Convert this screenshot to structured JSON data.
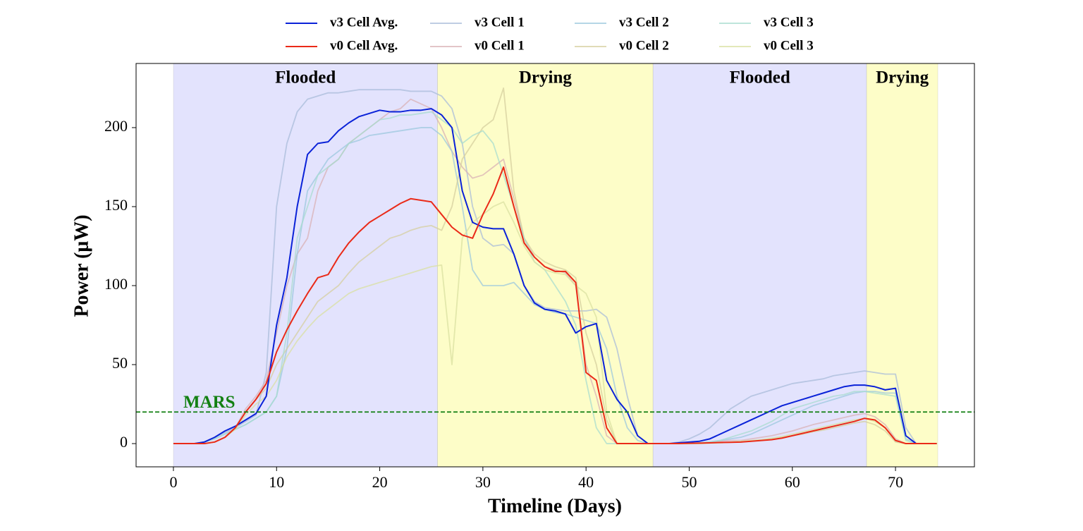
{
  "chart_data": {
    "type": "line",
    "xlabel": "Timeline (Days)",
    "ylabel": "Power (μW)",
    "xlim": [
      -3.62,
      77.65
    ],
    "ylim": [
      -14.7,
      240.6
    ],
    "xticks": [
      0,
      10,
      20,
      30,
      40,
      50,
      60,
      70
    ],
    "yticks": [
      0,
      50,
      100,
      150,
      200
    ],
    "regions": [
      {
        "label": "Flooded",
        "start": 0,
        "end": 25.6,
        "color": "#e3e3fd"
      },
      {
        "label": "Drying",
        "start": 25.6,
        "end": 46.5,
        "color": "#fdfdc8"
      },
      {
        "label": "Flooded",
        "start": 46.5,
        "end": 67.2,
        "color": "#e3e3fd"
      },
      {
        "label": "Drying",
        "start": 67.2,
        "end": 74.1,
        "color": "#fdfdc8"
      }
    ],
    "hline": {
      "label": "MARS",
      "value": 20,
      "color": "#138013"
    },
    "x": [
      0,
      1,
      2,
      3,
      4,
      5,
      6,
      7,
      8,
      9,
      10,
      11,
      12,
      13,
      14,
      15,
      16,
      17,
      18,
      19,
      20,
      21,
      22,
      23,
      24,
      25,
      26,
      27,
      28,
      29,
      30,
      31,
      32,
      33,
      34,
      35,
      36,
      37,
      38,
      39,
      40,
      41,
      42,
      43,
      44,
      45,
      46,
      47,
      48,
      49,
      50,
      51,
      52,
      53,
      54,
      55,
      56,
      57,
      58,
      59,
      60,
      61,
      62,
      63,
      64,
      65,
      66,
      67,
      68,
      69,
      70,
      71,
      72,
      73,
      74
    ],
    "series": [
      {
        "name": "v3 Cell Avg.",
        "color": "#0a22d8",
        "values": [
          0,
          0,
          0,
          1,
          4,
          8,
          11,
          15,
          19,
          30,
          75,
          105,
          150,
          183,
          190,
          191,
          198,
          203,
          207,
          209,
          211,
          210,
          210,
          211,
          211,
          212,
          208,
          200,
          160,
          140,
          137,
          136,
          136,
          120,
          100,
          89,
          85,
          84,
          82,
          70,
          74,
          76,
          40,
          28,
          20,
          5,
          0,
          0,
          0,
          0.5,
          1,
          1.5,
          3,
          6,
          9,
          12,
          15,
          18,
          21,
          24,
          26,
          28,
          30,
          32,
          34,
          36,
          37,
          37,
          36,
          34,
          35,
          5,
          0,
          0,
          0
        ]
      },
      {
        "name": "v0 Cell Avg.",
        "color": "#ea2a18",
        "values": [
          0,
          0,
          0,
          0,
          1,
          4,
          10,
          20,
          28,
          38,
          58,
          72,
          84,
          95,
          105,
          107,
          118,
          127,
          134,
          140,
          144,
          148,
          152,
          155,
          154,
          153,
          145,
          137,
          132,
          130,
          145,
          158,
          175,
          150,
          127,
          118,
          112,
          109,
          109,
          102,
          45,
          40,
          10,
          0,
          0,
          0,
          0,
          0,
          0,
          0,
          0.2,
          0.3,
          0.5,
          0.7,
          0.8,
          1,
          1.5,
          2,
          2.5,
          3.5,
          5,
          6.5,
          8,
          9.5,
          11,
          12.5,
          14,
          16,
          15,
          10,
          2,
          0,
          0,
          0,
          0
        ]
      },
      {
        "name": "v3 Cell 1",
        "color": "#a9bcd9",
        "values": [
          0,
          0,
          0,
          1,
          4,
          7,
          10,
          14,
          18,
          45,
          150,
          190,
          210,
          218,
          220,
          222,
          222,
          223,
          224,
          224,
          224,
          224,
          224,
          223,
          223,
          223,
          220,
          212,
          190,
          150,
          130,
          125,
          126,
          120,
          100,
          90,
          86,
          85,
          84,
          84,
          84,
          85,
          80,
          60,
          30,
          5,
          0,
          0,
          0,
          1,
          3,
          6,
          10,
          16,
          22,
          26,
          30,
          32,
          34,
          36,
          38,
          39,
          40,
          41,
          43,
          44,
          45,
          46,
          45,
          44,
          44,
          10,
          0,
          0,
          0
        ]
      },
      {
        "name": "v0 Cell 1",
        "color": "#d9b2b5",
        "values": [
          0,
          0,
          0,
          0,
          1,
          4,
          10,
          22,
          30,
          40,
          70,
          100,
          120,
          130,
          160,
          175,
          180,
          190,
          195,
          200,
          205,
          210,
          212,
          218,
          215,
          212,
          200,
          185,
          175,
          168,
          170,
          175,
          180,
          155,
          130,
          118,
          112,
          110,
          108,
          100,
          50,
          30,
          5,
          0,
          0,
          0,
          0,
          0,
          0,
          0,
          0,
          0.5,
          1,
          1.5,
          2,
          2,
          3,
          4,
          5,
          6.5,
          8,
          10,
          12,
          13.5,
          15,
          16.5,
          18,
          19,
          17,
          12,
          3,
          0,
          0,
          0,
          0
        ]
      },
      {
        "name": "v3 Cell 2",
        "color": "#9cc8dd",
        "values": [
          0,
          0,
          0,
          1,
          3,
          6,
          9,
          12,
          16,
          20,
          30,
          60,
          120,
          160,
          170,
          180,
          185,
          190,
          192,
          195,
          196,
          197,
          198,
          199,
          200,
          200,
          195,
          185,
          150,
          110,
          100,
          100,
          100,
          102,
          95,
          88,
          85,
          83,
          82,
          80,
          78,
          76,
          60,
          30,
          10,
          2,
          0,
          0,
          0,
          0,
          0,
          0.5,
          1,
          2,
          3,
          4,
          6,
          9,
          12,
          15,
          18,
          21,
          24,
          26,
          28,
          30,
          32,
          33,
          33,
          32,
          32,
          3,
          0,
          0,
          0
        ]
      },
      {
        "name": "v0 Cell 2",
        "color": "#d6cf9f",
        "values": [
          0,
          0,
          0,
          0,
          1,
          4,
          10,
          20,
          28,
          35,
          50,
          60,
          70,
          80,
          90,
          95,
          100,
          108,
          115,
          120,
          125,
          130,
          132,
          135,
          137,
          138,
          135,
          150,
          180,
          190,
          200,
          205,
          225,
          160,
          130,
          120,
          115,
          112,
          110,
          105,
          70,
          50,
          15,
          0,
          0,
          0,
          0,
          0,
          0,
          0,
          0,
          0,
          0.3,
          0.5,
          0.8,
          1,
          1.5,
          2,
          3,
          4,
          5,
          6,
          7.5,
          8.5,
          10,
          11.5,
          13,
          14,
          12,
          8,
          1,
          0,
          0,
          0,
          0
        ]
      },
      {
        "name": "v3 Cell 3",
        "color": "#a8dccf",
        "values": [
          0,
          0,
          0,
          1,
          3,
          6,
          9,
          12,
          16,
          20,
          30,
          70,
          130,
          150,
          170,
          175,
          180,
          190,
          195,
          200,
          205,
          206,
          208,
          208,
          209,
          210,
          205,
          200,
          190,
          195,
          198,
          190,
          170,
          150,
          130,
          115,
          110,
          100,
          90,
          75,
          40,
          10,
          0,
          0,
          0,
          0,
          0,
          0,
          0,
          0,
          0,
          0.5,
          1,
          2,
          4,
          6,
          8,
          11,
          14,
          18,
          22,
          24,
          26,
          28,
          30,
          31,
          33,
          33,
          32,
          31,
          30,
          2,
          0,
          0,
          0
        ]
      },
      {
        "name": "v0 Cell 3",
        "color": "#d9e0a2",
        "values": [
          0,
          0,
          0,
          0,
          1,
          4,
          9,
          18,
          25,
          30,
          40,
          55,
          65,
          73,
          80,
          85,
          90,
          95,
          98,
          100,
          102,
          104,
          106,
          108,
          110,
          112,
          113,
          50,
          130,
          140,
          145,
          150,
          153,
          140,
          125,
          115,
          110,
          108,
          107,
          100,
          95,
          80,
          20,
          0,
          0,
          0,
          0,
          0,
          0,
          0,
          0,
          0,
          0.3,
          0.5,
          1,
          1.5,
          2,
          2.5,
          3.5,
          4.5,
          6,
          7.5,
          9,
          10.5,
          12,
          13.5,
          15,
          16,
          14,
          10,
          2,
          0,
          0,
          0,
          0
        ]
      }
    ]
  }
}
